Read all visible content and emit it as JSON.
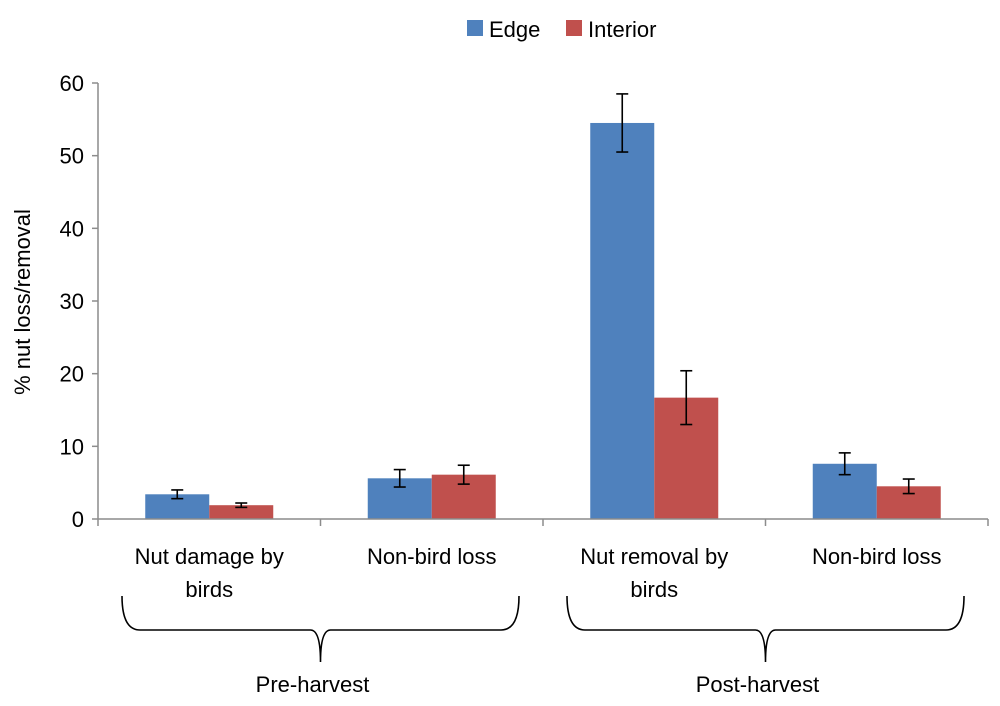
{
  "chart_data": {
    "type": "bar",
    "ylabel": "% nut loss/removal",
    "ylim": [
      0,
      60
    ],
    "yticks": [
      0,
      10,
      20,
      30,
      40,
      50,
      60
    ],
    "grid": false,
    "legend_position": "top",
    "categories": [
      [
        "Nut damage by",
        "birds"
      ],
      [
        "Non-bird loss"
      ],
      [
        "Nut removal by",
        "birds"
      ],
      [
        "Non-bird loss"
      ]
    ],
    "groups": [
      {
        "label": "Pre-harvest",
        "categories": [
          0,
          1
        ]
      },
      {
        "label": "Post-harvest",
        "categories": [
          2,
          3
        ]
      }
    ],
    "series": [
      {
        "name": "Edge",
        "color": "#4F81BD",
        "values": [
          3.4,
          5.6,
          54.5,
          7.6
        ],
        "errors": [
          0.6,
          1.2,
          4.0,
          1.5
        ]
      },
      {
        "name": "Interior",
        "color": "#C0504D",
        "values": [
          1.9,
          6.1,
          16.7,
          4.5
        ],
        "errors": [
          0.3,
          1.3,
          3.7,
          1.0
        ]
      }
    ]
  }
}
